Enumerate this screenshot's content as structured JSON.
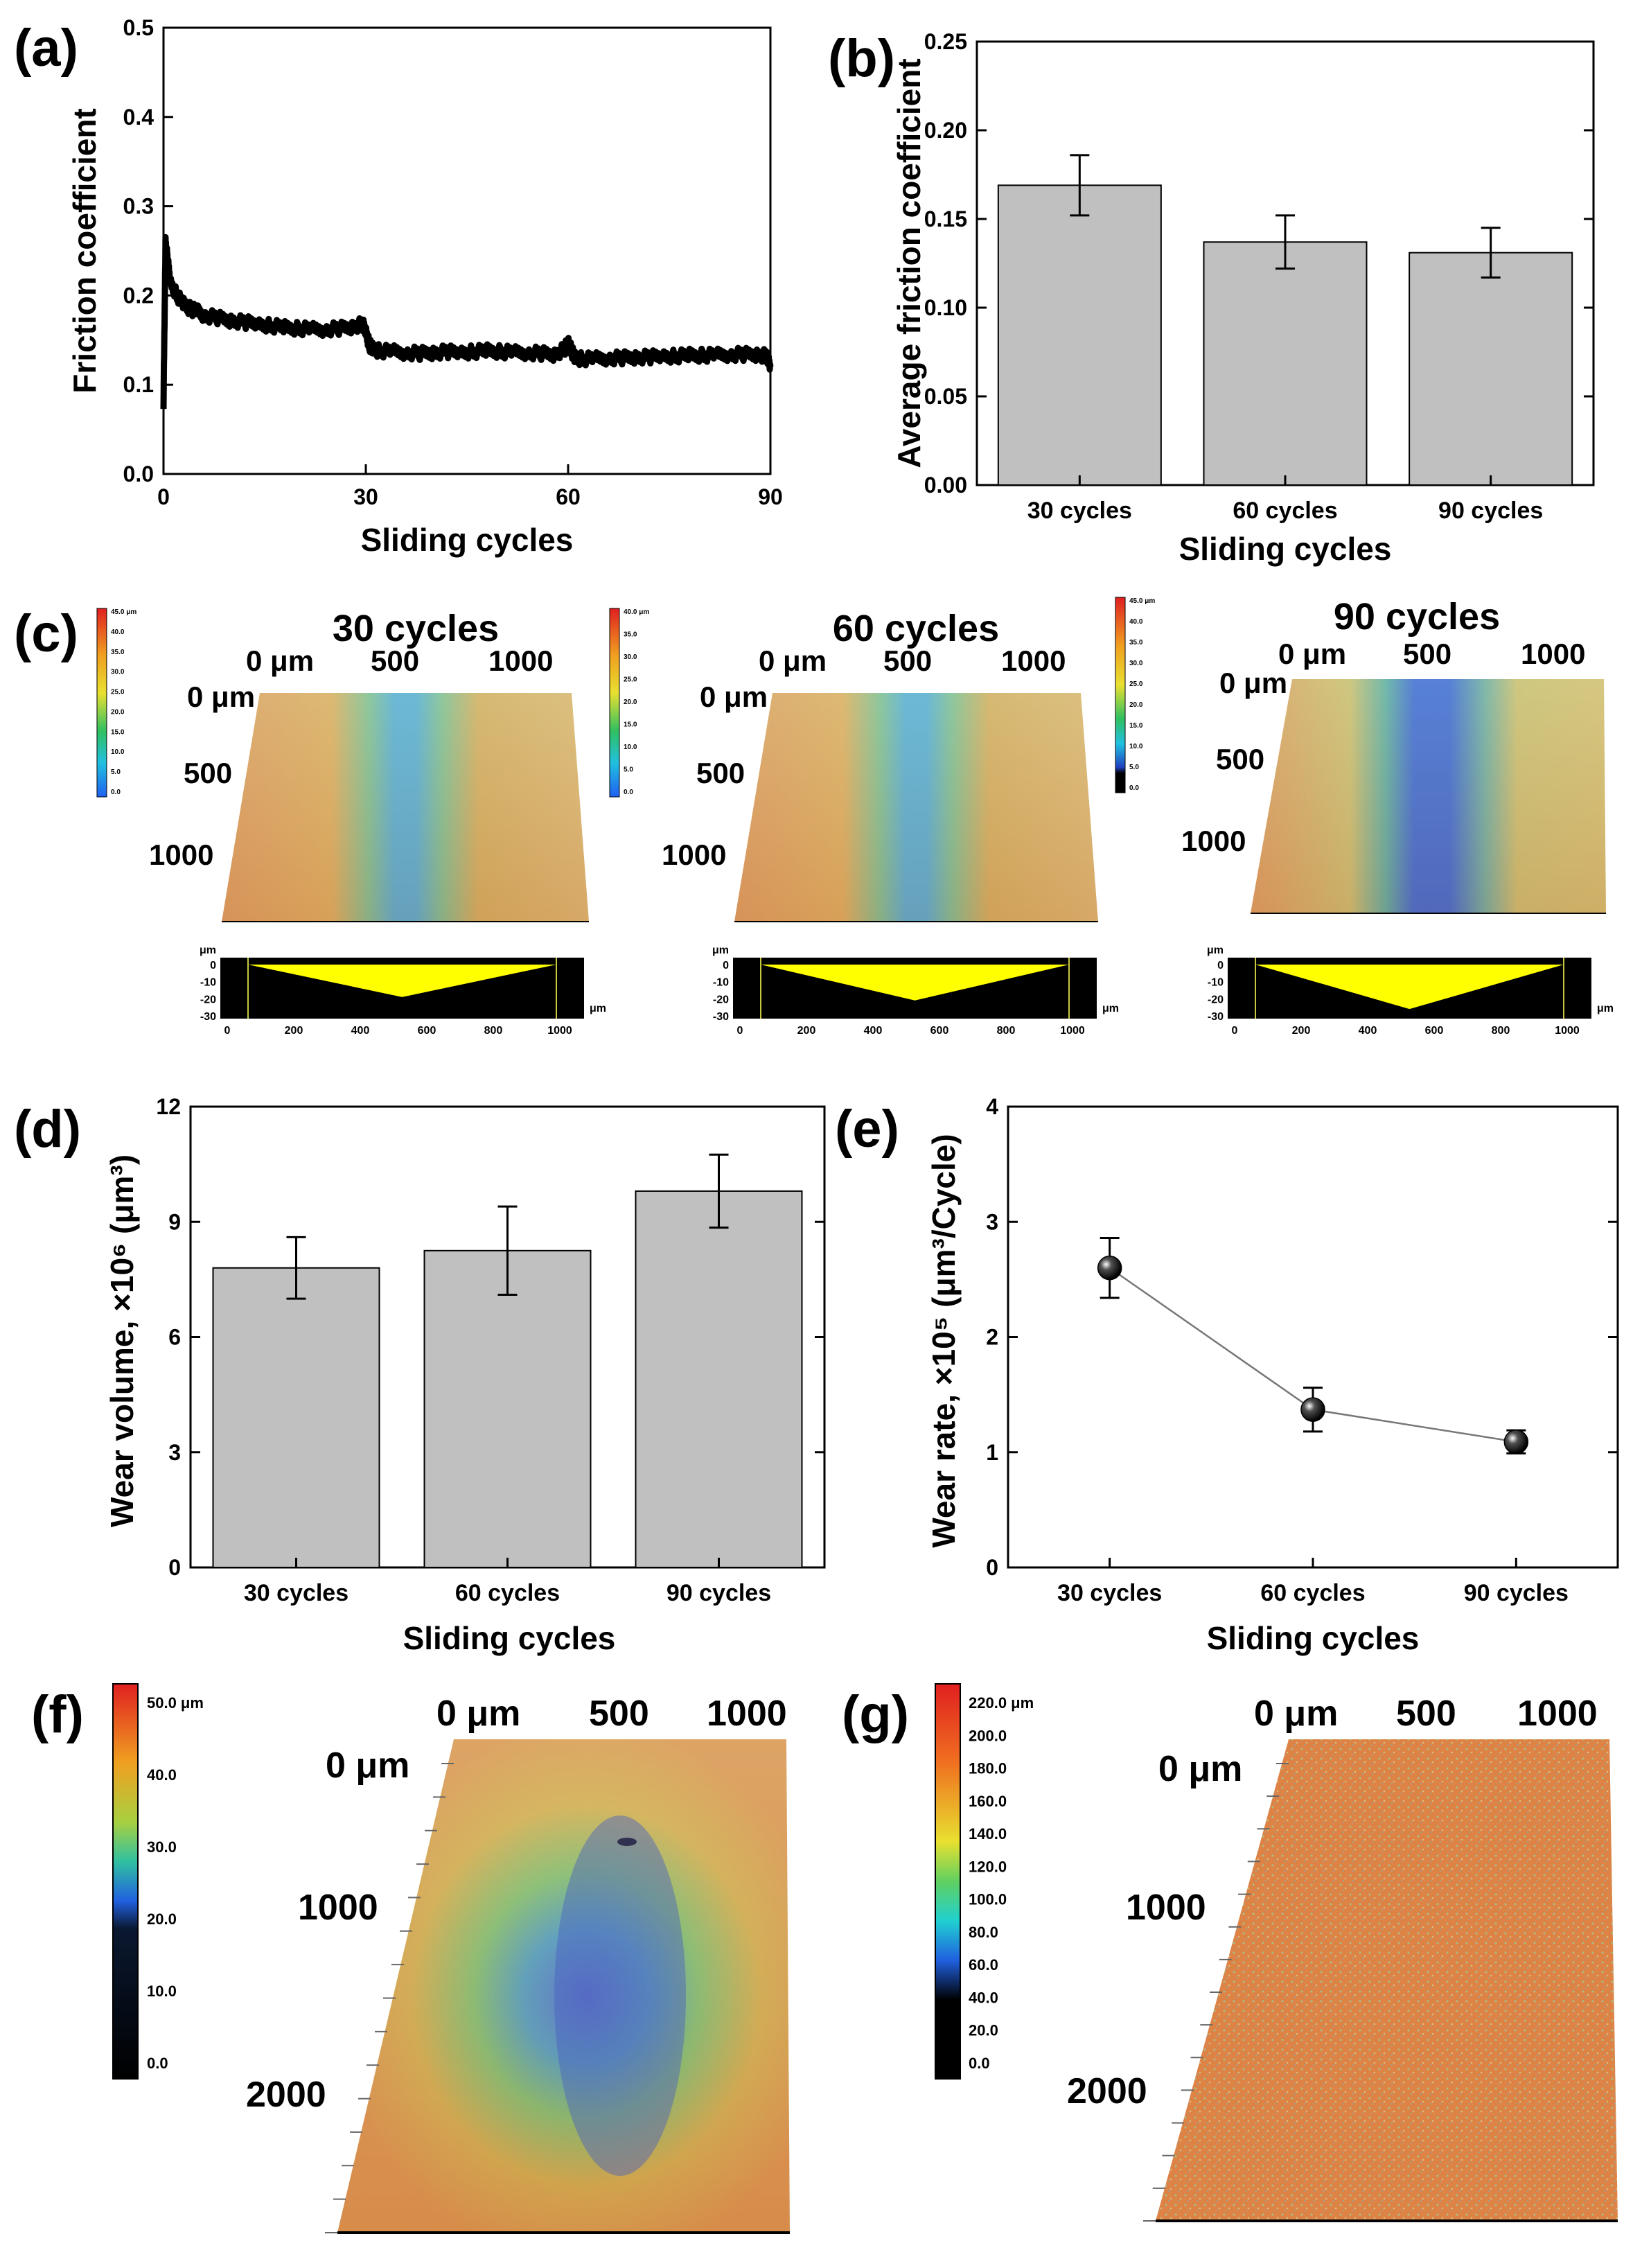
{
  "chart_data": [
    {
      "panel": "(a)",
      "type": "line",
      "xlabel": "Sliding cycles",
      "ylabel": "Friction coefficient",
      "xlim": [
        0,
        90
      ],
      "ylim": [
        0,
        0.5
      ],
      "xticks": [
        0,
        30,
        60,
        90
      ],
      "yticks": [
        0.0,
        0.1,
        0.2,
        0.3,
        0.4,
        0.5
      ],
      "xtick_labels": [
        "0",
        "30",
        "60",
        "90"
      ],
      "ytick_labels": [
        "0.0",
        "0.1",
        "0.2",
        "0.3",
        "0.4",
        "0.5"
      ],
      "series": [
        {
          "name": "friction",
          "x": [
            0,
            0.3,
            0.6,
            1,
            2,
            3,
            4,
            5,
            6,
            8,
            10,
            12,
            14,
            16,
            18,
            20,
            22,
            24,
            26,
            28,
            29.5,
            30,
            30.5,
            31,
            32,
            34,
            36,
            38,
            40,
            42,
            44,
            46,
            48,
            50,
            52,
            54,
            56,
            58,
            59.5,
            60,
            60.5,
            61,
            62,
            64,
            66,
            68,
            70,
            72,
            74,
            76,
            78,
            80,
            82,
            84,
            86,
            88,
            89.5,
            90
          ],
          "y": [
            0.08,
            0.26,
            0.24,
            0.215,
            0.2,
            0.19,
            0.185,
            0.182,
            0.178,
            0.175,
            0.172,
            0.17,
            0.168,
            0.166,
            0.164,
            0.163,
            0.162,
            0.162,
            0.163,
            0.165,
            0.168,
            0.16,
            0.145,
            0.14,
            0.138,
            0.137,
            0.136,
            0.135,
            0.136,
            0.137,
            0.136,
            0.137,
            0.138,
            0.137,
            0.136,
            0.136,
            0.135,
            0.134,
            0.14,
            0.148,
            0.138,
            0.13,
            0.129,
            0.129,
            0.13,
            0.13,
            0.131,
            0.131,
            0.132,
            0.132,
            0.133,
            0.133,
            0.133,
            0.134,
            0.134,
            0.134,
            0.132,
            0.12
          ]
        }
      ]
    },
    {
      "panel": "(b)",
      "type": "bar",
      "xlabel": "Sliding cycles",
      "ylabel": "Average friction coefficient",
      "categories": [
        "30 cycles",
        "60 cycles",
        "90 cycles"
      ],
      "values": [
        0.169,
        0.137,
        0.131
      ],
      "errors": [
        0.017,
        0.015,
        0.014
      ],
      "ylim": [
        0,
        0.25
      ],
      "yticks": [
        0.0,
        0.05,
        0.1,
        0.15,
        0.2,
        0.25
      ],
      "ytick_labels": [
        "0.00",
        "0.05",
        "0.10",
        "0.15",
        "0.20",
        "0.25"
      ]
    },
    {
      "panel": "(d)",
      "type": "bar",
      "xlabel": "Sliding cycles",
      "ylabel": "Wear volume, ×10⁶ (μm³)",
      "categories": [
        "30 cycles",
        "60 cycles",
        "90 cycles"
      ],
      "values": [
        7.8,
        8.25,
        9.8
      ],
      "errors": [
        0.8,
        1.15,
        0.95
      ],
      "ylim": [
        0,
        12
      ],
      "yticks": [
        0,
        3,
        6,
        9,
        12
      ],
      "ytick_labels": [
        "0",
        "3",
        "6",
        "9",
        "12"
      ]
    },
    {
      "panel": "(e)",
      "type": "scatter",
      "xlabel": "Sliding cycles",
      "ylabel": "Wear rate, ×10⁵ (μm³/Cycle)",
      "categories": [
        "30 cycles",
        "60 cycles",
        "90 cycles"
      ],
      "values": [
        2.6,
        1.37,
        1.09
      ],
      "errors": [
        0.26,
        0.19,
        0.1
      ],
      "ylim": [
        0,
        4
      ],
      "yticks": [
        0,
        1,
        2,
        3,
        4
      ],
      "ytick_labels": [
        "0",
        "1",
        "2",
        "3",
        "4"
      ]
    }
  ],
  "maps": {
    "c_label": "(c)",
    "f_label": "(f)",
    "g_label": "(g)",
    "c": [
      {
        "title": "30 cycles",
        "x_axis": [
          "0 μm",
          "500",
          "1000"
        ],
        "y_axis": [
          "0 μm",
          "500",
          "1000"
        ],
        "colorbar": [
          "45.0 μm",
          "40.0",
          "35.0",
          "30.0",
          "25.0",
          "20.0",
          "15.0",
          "10.0",
          "5.0",
          "0.0"
        ],
        "profile_unit": "μm",
        "profile_y": [
          "0",
          "-10",
          "-20",
          "-30"
        ],
        "profile_x": [
          "0",
          "200",
          "400",
          "600",
          "800",
          "1000"
        ],
        "profile_depth": 19
      },
      {
        "title": "60 cycles",
        "x_axis": [
          "0 μm",
          "500",
          "1000"
        ],
        "y_axis": [
          "0 μm",
          "500",
          "1000"
        ],
        "colorbar": [
          "40.0 μm",
          "35.0",
          "30.0",
          "25.0",
          "20.0",
          "15.0",
          "10.0",
          "5.0",
          "0.0"
        ],
        "profile_unit": "μm",
        "profile_y": [
          "0",
          "-10",
          "-20",
          "-30"
        ],
        "profile_x": [
          "0",
          "200",
          "400",
          "600",
          "800",
          "1000"
        ],
        "profile_depth": 21
      },
      {
        "title": "90 cycles",
        "x_axis": [
          "0 μm",
          "500",
          "1000"
        ],
        "y_axis": [
          "0 μm",
          "500",
          "1000"
        ],
        "colorbar": [
          "45.0 μm",
          "40.0",
          "35.0",
          "30.0",
          "25.0",
          "20.0",
          "15.0",
          "10.0",
          "5.0",
          "0.0"
        ],
        "profile_unit": "μm",
        "profile_y": [
          "0",
          "-10",
          "-20",
          "-30"
        ],
        "profile_x": [
          "0",
          "200",
          "400",
          "600",
          "800",
          "1000"
        ],
        "profile_depth": 26
      }
    ],
    "f": {
      "x_axis": [
        "0 μm",
        "500",
        "1000"
      ],
      "y_axis": [
        "0 μm",
        "1000",
        "2000"
      ],
      "colorbar": [
        "50.0 μm",
        "40.0",
        "30.0",
        "20.0",
        "10.0",
        "0.0"
      ]
    },
    "g": {
      "x_axis": [
        "0 μm",
        "500",
        "1000"
      ],
      "y_axis": [
        "0 μm",
        "1000",
        "2000"
      ],
      "colorbar": [
        "220.0 μm",
        "200.0",
        "180.0",
        "160.0",
        "140.0",
        "120.0",
        "100.0",
        "80.0",
        "60.0",
        "40.0",
        "20.0",
        "0.0"
      ]
    }
  },
  "colors": {
    "bar_fill": "#c0c0c0",
    "line": "#000000",
    "surface_red": "#d9423a",
    "surface_orange": "#e0a050",
    "surface_yellow": "#d8c070",
    "surface_blue": "#4a8de0",
    "profile_yellow": "#ffff00"
  }
}
